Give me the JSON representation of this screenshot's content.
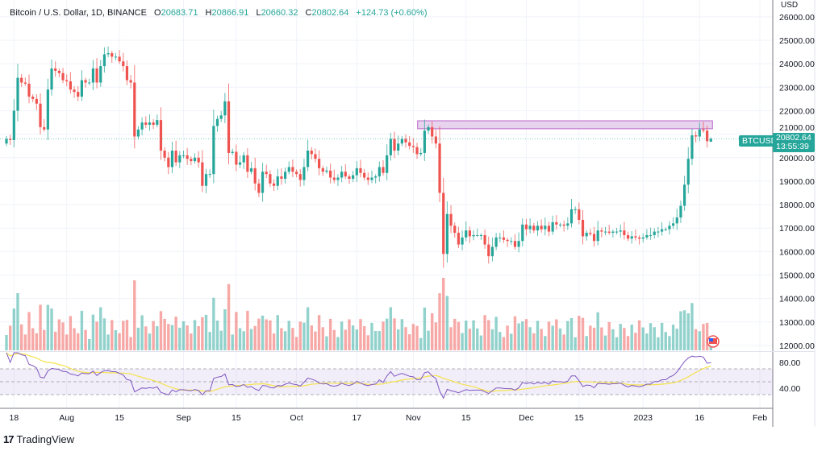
{
  "header": {
    "title": "Bitcoin / U.S. Dollar, 1D, BINANCE",
    "open_label": "O",
    "open": "20683.71",
    "high_label": "H",
    "high": "20866.91",
    "low_label": "L",
    "low": "20660.32",
    "close_label": "C",
    "close": "20802.64",
    "change": "+124.73 (+0.60%)"
  },
  "price_axis": {
    "currency": "USD",
    "symbol_tag": "BTCUSD",
    "last_price": "20802.64",
    "countdown": "13:55:39"
  },
  "branding": {
    "logo_text": "TradingView"
  },
  "colors": {
    "up": "#26a69a",
    "down": "#ef5350",
    "rsi": "#7e57c2",
    "rsi_ma": "#f5e14b",
    "resistance_fill": "#e8d3ee",
    "resistance_border": "#ba68c8"
  },
  "icons": {
    "event": "us-flag-icon"
  },
  "chart_data": {
    "type": "candlestick",
    "start_date": "2022-07-16",
    "interval": "1D",
    "closes": [
      20800,
      20750,
      22000,
      23400,
      23200,
      23150,
      22600,
      22500,
      22300,
      21300,
      21200,
      22900,
      23800,
      23700,
      23600,
      23300,
      23250,
      22900,
      22800,
      22600,
      23300,
      23200,
      23200,
      23800,
      23200,
      23900,
      24400,
      24450,
      24300,
      24300,
      24100,
      23900,
      23300,
      23200,
      20900,
      21200,
      21500,
      21400,
      21500,
      21400,
      21600,
      20300,
      20000,
      19600,
      20300,
      19800,
      20100,
      20100,
      19950,
      19850,
      20000,
      19800,
      18800,
      19300,
      19300,
      21350,
      21650,
      21800,
      22400,
      20200,
      20250,
      19700,
      19800,
      20100,
      19400,
      19550,
      18900,
      18500,
      19400,
      19300,
      18900,
      18800,
      19200,
      19100,
      19400,
      19600,
      19400,
      19300,
      19050,
      19600,
      20300,
      20150,
      19950,
      19550,
      19400,
      19450,
      19150,
      19050,
      19150,
      19400,
      19200,
      19100,
      19250,
      19550,
      19350,
      19150,
      19050,
      19150,
      19200,
      19600,
      19350,
      20100,
      20800,
      20300,
      20600,
      20800,
      20650,
      20500,
      20450,
      20150,
      20200,
      21150,
      21300,
      20900,
      20600,
      18500,
      15900,
      17600,
      17100,
      16800,
      16300,
      16600,
      16900,
      16650,
      16700,
      16700,
      16700,
      16300,
      15800,
      16200,
      16600,
      16600,
      16500,
      16450,
      16450,
      16200,
      16450,
      17150,
      16950,
      17100,
      16900,
      17100,
      16950,
      17100,
      16850,
      17250,
      17150,
      17150,
      17100,
      17200,
      17800,
      17800,
      17350,
      16650,
      16800,
      16750,
      16450,
      16900,
      16850,
      16850,
      16800,
      16850,
      16850,
      16900,
      16700,
      16550,
      16650,
      16600,
      16550,
      16600,
      16700,
      16700,
      16850,
      16850,
      16950,
      16950,
      17100,
      17200,
      17450,
      17950,
      18850,
      19950,
      20950,
      20900,
      21200,
      21150,
      20700,
      20802.64
    ],
    "last_candle": {
      "open": 20683.71,
      "high": 20866.91,
      "low": 20660.32,
      "close": 20802.64
    },
    "price_axis_ticks": [
      "26000.00",
      "25000.00",
      "24000.00",
      "23000.00",
      "22000.00",
      "21000.00",
      "20000.00",
      "19000.00",
      "18000.00",
      "17000.00",
      "16000.00",
      "15000.00",
      "14000.00",
      "13000.00",
      "12000.00"
    ],
    "ylim": [
      12000,
      26000
    ],
    "time_labels": [
      {
        "date": "2022-07-18",
        "label": "18"
      },
      {
        "date": "2022-08-01",
        "label": "Aug"
      },
      {
        "date": "2022-08-15",
        "label": "15"
      },
      {
        "date": "2022-09-01",
        "label": "Sep"
      },
      {
        "date": "2022-09-15",
        "label": "15"
      },
      {
        "date": "2022-10-01",
        "label": "Oct"
      },
      {
        "date": "2022-10-17",
        "label": "17"
      },
      {
        "date": "2022-11-01",
        "label": "Nov"
      },
      {
        "date": "2022-11-15",
        "label": "15"
      },
      {
        "date": "2022-12-01",
        "label": "Dec"
      },
      {
        "date": "2022-12-15",
        "label": "15"
      },
      {
        "date": "2023-01-01",
        "label": "2023"
      },
      {
        "date": "2023-01-16",
        "label": "16"
      },
      {
        "date": "2023-02-01",
        "label": "Feb"
      }
    ],
    "resistance_zone": {
      "from_date": "2022-11-03",
      "to_date": "2023-01-19",
      "low": 21230,
      "high": 21570
    },
    "rsi": {
      "period": 14,
      "ma_period": 14,
      "upper_band": 70,
      "lower_band": 30,
      "mid": 50,
      "ticks": [
        "80.00",
        "40.00"
      ]
    },
    "volume": {
      "shown": true
    },
    "grid": true
  }
}
